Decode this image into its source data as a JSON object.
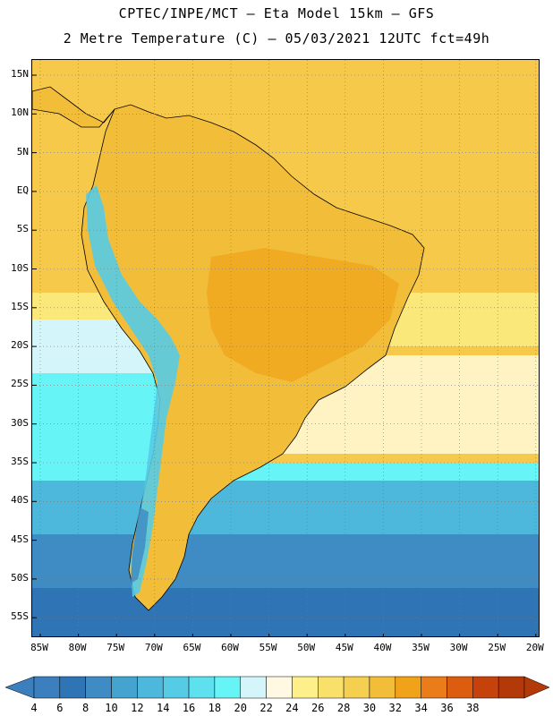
{
  "header": {
    "line1": "CPTEC/INPE/MCT –  Eta Model 15km – GFS",
    "line2": "2 Metre Temperature (C) – 05/03/2021 12UTC fct=49h"
  },
  "axes": {
    "lat_labels": [
      "15N",
      "10N",
      "5N",
      "EQ",
      "5S",
      "10S",
      "15S",
      "20S",
      "25S",
      "30S",
      "35S",
      "40S",
      "45S",
      "50S",
      "55S"
    ],
    "lon_labels": [
      "85W",
      "80W",
      "75W",
      "70W",
      "65W",
      "60W",
      "55W",
      "50W",
      "45W",
      "40W",
      "35W",
      "30W",
      "25W",
      "20W"
    ]
  },
  "colorbar": {
    "levels": [
      "4",
      "6",
      "8",
      "10",
      "12",
      "14",
      "16",
      "18",
      "20",
      "22",
      "24",
      "26",
      "28",
      "30",
      "32",
      "34",
      "36",
      "38"
    ],
    "colors": [
      "#3b7fbf",
      "#2f74b5",
      "#3f8cc4",
      "#45a3cf",
      "#4db8dc",
      "#55cbe5",
      "#5fe0ee",
      "#66f4f7",
      "#d4f6fb",
      "#fff8e2",
      "#fdf08a",
      "#f9e06a",
      "#f5cf50",
      "#f2be3a",
      "#f0a318",
      "#ea7c1a",
      "#dc5d10",
      "#c5420d",
      "#b33a08"
    ],
    "low_color": "#3b7fbf",
    "high_color": "#b33a08"
  },
  "map_colors": {
    "ocean_warm": "#f7c94a",
    "ocean_mid": "#fbe87a",
    "ocean_cool": "#d4f6fb",
    "ocean_cold1": "#66f4f7",
    "ocean_cold2": "#4db8dc",
    "ocean_cold3": "#3f8cc4",
    "ocean_cold4": "#2f74b5",
    "land_hot": "#f0a318",
    "land_warm": "#f2be3a",
    "andes_cold": "#55cbe5",
    "andes_colder": "#3f8cc4"
  }
}
